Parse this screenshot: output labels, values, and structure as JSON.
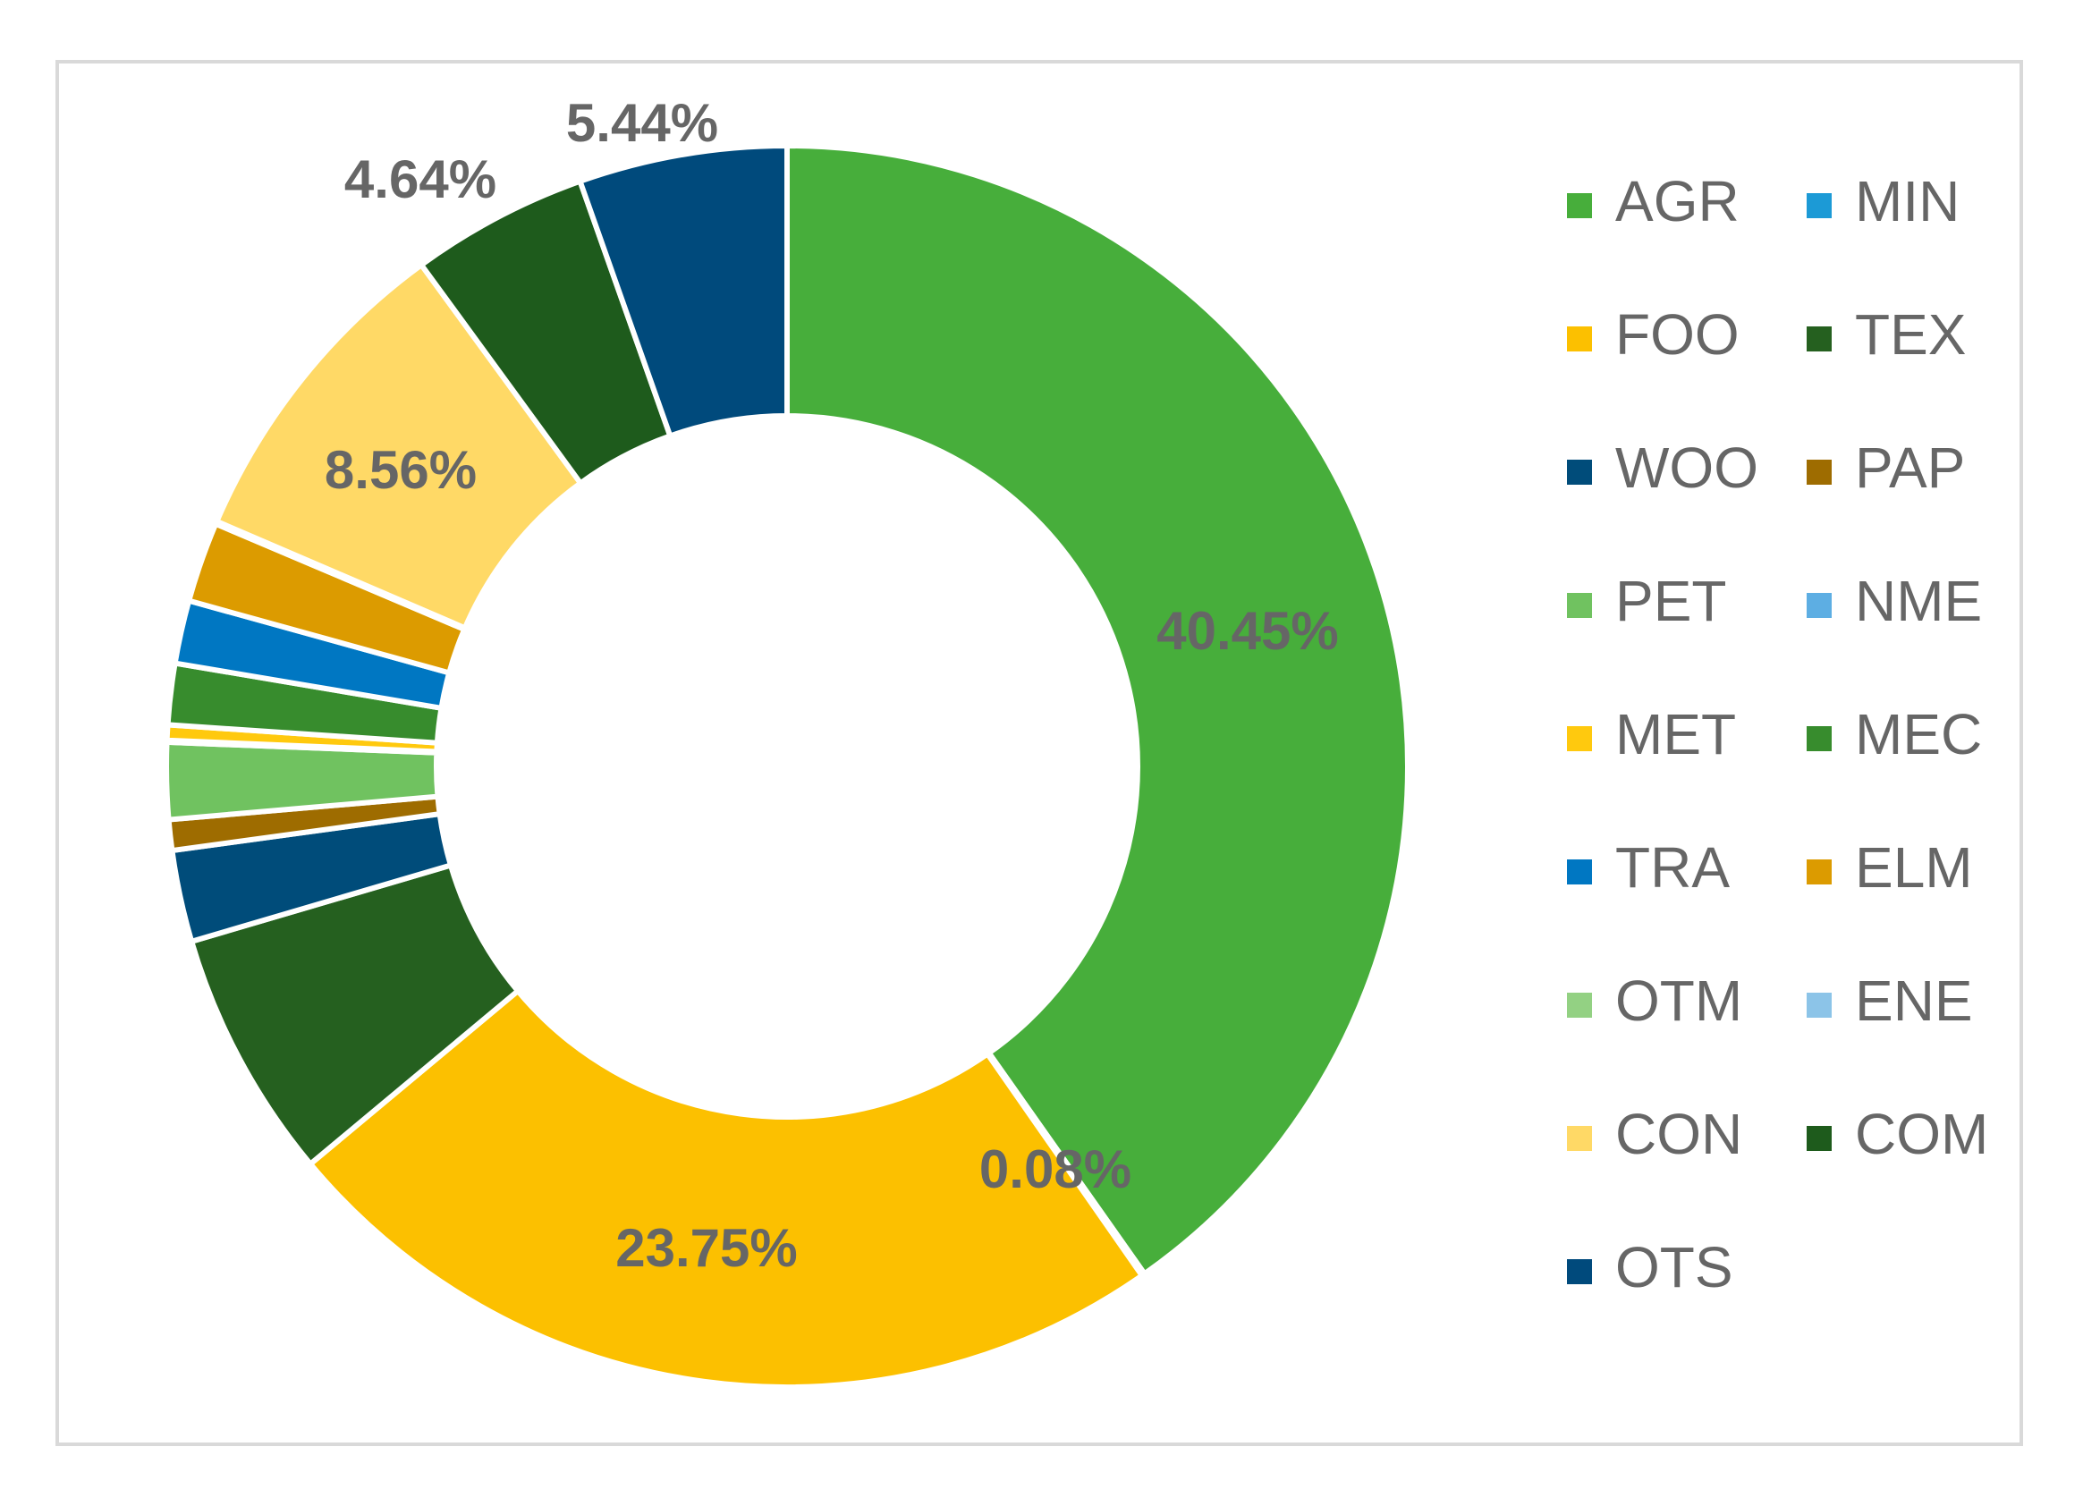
{
  "chart_data": {
    "type": "pie",
    "subtype": "doughnut",
    "title": "",
    "categories": [
      "AGR",
      "MIN",
      "FOO",
      "TEX",
      "WOO",
      "PAP",
      "PET",
      "NME",
      "MET",
      "MEC",
      "TRA",
      "ELM",
      "OTM",
      "ENE",
      "CON",
      "COM",
      "OTS"
    ],
    "values": [
      40.45,
      0.08,
      23.75,
      6.55,
      2.4,
      0.8,
      2.0,
      0.05,
      0.4,
      1.6,
      1.65,
      2.1,
      0.04,
      0.03,
      8.56,
      4.64,
      5.44
    ],
    "data_labels": [
      {
        "category": "AGR",
        "text": "40.45%"
      },
      {
        "category": "MIN",
        "text": "0.08%"
      },
      {
        "category": "FOO",
        "text": "23.75%"
      },
      {
        "category": "CON",
        "text": "8.56%"
      },
      {
        "category": "COM",
        "text": "4.64%"
      },
      {
        "category": "OTS",
        "text": "5.44%"
      }
    ],
    "colors": [
      "#47ae3b",
      "#1c9ad6",
      "#fcc000",
      "#25601f",
      "#004c7a",
      "#9e6c00",
      "#70c260",
      "#5daee3",
      "#ffc90e",
      "#378c2d",
      "#0077c2",
      "#dc9b00",
      "#93d183",
      "#8cc4e8",
      "#ffd966",
      "#1e5b1c",
      "#004a7c"
    ],
    "legend": {
      "placement": "right",
      "columns": 2,
      "entries": [
        "AGR",
        "MIN",
        "FOO",
        "TEX",
        "WOO",
        "PAP",
        "PET",
        "NME",
        "MET",
        "MEC",
        "TRA",
        "ELM",
        "OTM",
        "ENE",
        "CON",
        "COM",
        "OTS"
      ]
    },
    "label_color": "#666666",
    "frame_color": "#d9d9d9"
  }
}
